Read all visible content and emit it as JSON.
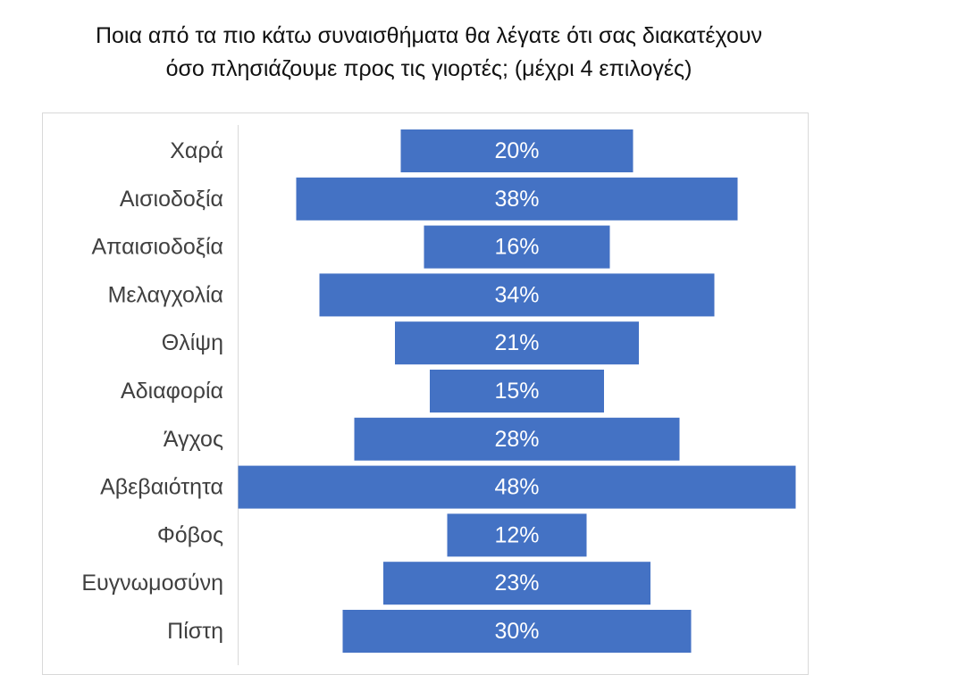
{
  "title_lines": [
    "Ποια από τα πιο κάτω συναισθήματα θα λέγατε ότι σας διακατέχουν",
    "όσο πλησιάζουμε προς τις γιορτές; (μέχρι 4 επιλογές)"
  ],
  "chart_data": {
    "type": "bar",
    "orientation": "horizontal",
    "layout": "centered",
    "title": "Ποια από τα πιο κάτω συναισθήματα θα λέγατε ότι σας διακατέχουν όσο πλησιάζουμε προς τις γιορτές; (μέχρι 4 επιλογές)",
    "categories": [
      "Χαρά",
      "Αισιοδοξία",
      "Απαισιοδοξία",
      "Μελαγχολία",
      "Θλίψη",
      "Αδιαφορία",
      "Άγχος",
      "Αβεβαιότητα",
      "Φόβος",
      "Ευγνωμοσύνη",
      "Πίστη"
    ],
    "values": [
      20,
      38,
      16,
      34,
      21,
      15,
      28,
      48,
      12,
      23,
      30
    ],
    "value_labels": [
      "20%",
      "38%",
      "16%",
      "34%",
      "21%",
      "15%",
      "28%",
      "48%",
      "12%",
      "23%",
      "30%"
    ],
    "unit": "%",
    "grid": false,
    "legend": "none",
    "bar_color": "#4472c4"
  }
}
